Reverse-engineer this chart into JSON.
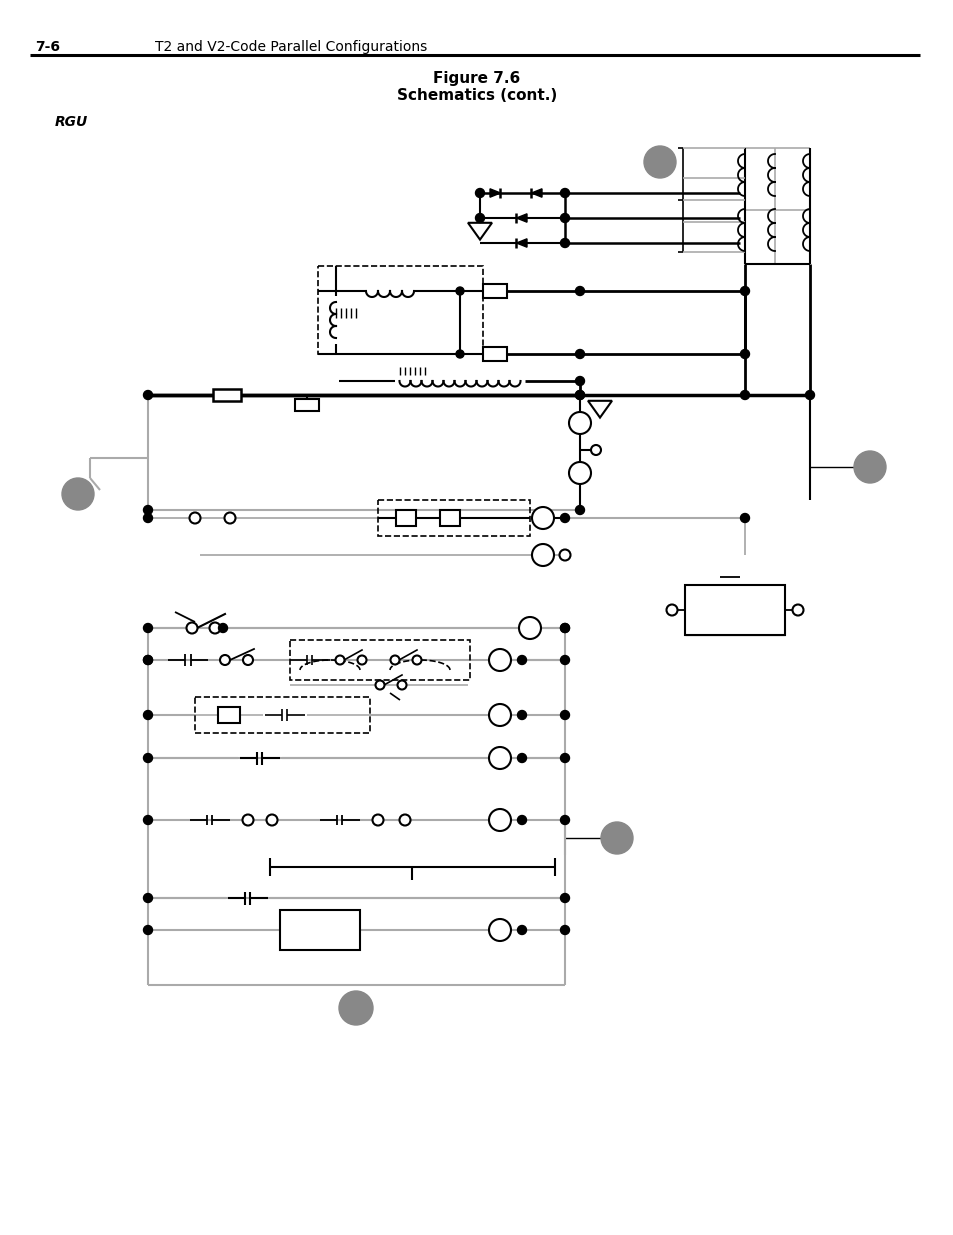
{
  "title": "Figure 7.6",
  "subtitle": "Schematics (cont.)",
  "header_num": "7-6",
  "header_text": "T2 and V2-Code Parallel Configurations",
  "label_rgu": "RGU",
  "bg": "#ffffff",
  "lc": "#000000",
  "gc": "#888888",
  "gray_line": "#aaaaaa"
}
